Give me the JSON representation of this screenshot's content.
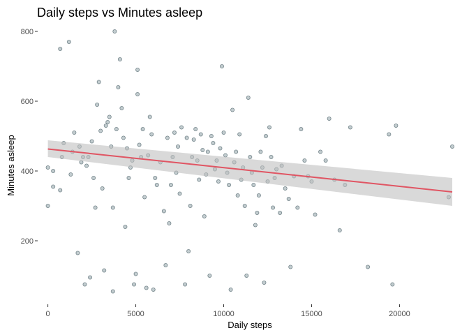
{
  "chart_data": {
    "type": "scatter",
    "title": "Daily steps vs Minutes asleep",
    "xlabel": "Daily steps",
    "ylabel": "Minutes asleep",
    "xlim": [
      -500,
      23000
    ],
    "ylim": [
      20,
      830
    ],
    "xticks": [
      0,
      5000,
      10000,
      15000,
      20000
    ],
    "yticks": [
      200,
      400,
      600,
      800
    ],
    "grid": false,
    "legend": "none",
    "colors": {
      "points": "#8fa3a8",
      "point_outline": "#4a5f66",
      "trend_line": "#e05563",
      "confidence_band": "#bfbfbf"
    },
    "trend_line": {
      "x": [
        0,
        23000
      ],
      "y": [
        463,
        340
      ]
    },
    "confidence_band": {
      "x": [
        0,
        23000
      ],
      "lower": [
        440,
        300
      ],
      "upper": [
        488,
        380
      ]
    },
    "points": [
      [
        0,
        300
      ],
      [
        0,
        410
      ],
      [
        300,
        355
      ],
      [
        300,
        400
      ],
      [
        700,
        750
      ],
      [
        700,
        345
      ],
      [
        800,
        440
      ],
      [
        900,
        480
      ],
      [
        1200,
        770
      ],
      [
        1300,
        390
      ],
      [
        1400,
        455
      ],
      [
        1500,
        510
      ],
      [
        1700,
        165
      ],
      [
        1800,
        470
      ],
      [
        1900,
        425
      ],
      [
        2000,
        440
      ],
      [
        2100,
        75
      ],
      [
        2200,
        415
      ],
      [
        2300,
        440
      ],
      [
        2400,
        95
      ],
      [
        2500,
        485
      ],
      [
        2600,
        380
      ],
      [
        2700,
        295
      ],
      [
        2800,
        590
      ],
      [
        2900,
        655
      ],
      [
        3000,
        515
      ],
      [
        3100,
        350
      ],
      [
        3200,
        115
      ],
      [
        3300,
        530
      ],
      [
        3400,
        540
      ],
      [
        3500,
        555
      ],
      [
        3600,
        470
      ],
      [
        3700,
        295
      ],
      [
        3700,
        55
      ],
      [
        3800,
        800
      ],
      [
        3900,
        520
      ],
      [
        4000,
        640
      ],
      [
        4100,
        720
      ],
      [
        4200,
        580
      ],
      [
        4300,
        495
      ],
      [
        4400,
        240
      ],
      [
        4500,
        465
      ],
      [
        4600,
        380
      ],
      [
        4700,
        410
      ],
      [
        4800,
        430
      ],
      [
        4900,
        75
      ],
      [
        5000,
        105
      ],
      [
        5100,
        690
      ],
      [
        5100,
        620
      ],
      [
        5200,
        475
      ],
      [
        5300,
        440
      ],
      [
        5400,
        520
      ],
      [
        5500,
        325
      ],
      [
        5600,
        65
      ],
      [
        5700,
        445
      ],
      [
        5800,
        555
      ],
      [
        5900,
        505
      ],
      [
        6000,
        60
      ],
      [
        6100,
        380
      ],
      [
        6200,
        360
      ],
      [
        6400,
        425
      ],
      [
        6600,
        285
      ],
      [
        6700,
        130
      ],
      [
        6800,
        495
      ],
      [
        6900,
        250
      ],
      [
        7000,
        360
      ],
      [
        7100,
        440
      ],
      [
        7200,
        510
      ],
      [
        7300,
        395
      ],
      [
        7400,
        470
      ],
      [
        7500,
        335
      ],
      [
        7600,
        525
      ],
      [
        7800,
        75
      ],
      [
        7900,
        495
      ],
      [
        8000,
        170
      ],
      [
        8100,
        300
      ],
      [
        8200,
        440
      ],
      [
        8300,
        490
      ],
      [
        8400,
        520
      ],
      [
        8500,
        430
      ],
      [
        8600,
        375
      ],
      [
        8700,
        505
      ],
      [
        8800,
        460
      ],
      [
        8900,
        270
      ],
      [
        9000,
        390
      ],
      [
        9100,
        455
      ],
      [
        9200,
        100
      ],
      [
        9300,
        500
      ],
      [
        9400,
        480
      ],
      [
        9500,
        405
      ],
      [
        9600,
        430
      ],
      [
        9700,
        370
      ],
      [
        9800,
        465
      ],
      [
        9900,
        700
      ],
      [
        10000,
        510
      ],
      [
        10100,
        445
      ],
      [
        10200,
        395
      ],
      [
        10300,
        360
      ],
      [
        10400,
        60
      ],
      [
        10500,
        575
      ],
      [
        10600,
        425
      ],
      [
        10700,
        455
      ],
      [
        10800,
        330
      ],
      [
        10900,
        505
      ],
      [
        11000,
        375
      ],
      [
        11100,
        410
      ],
      [
        11200,
        300
      ],
      [
        11300,
        100
      ],
      [
        11400,
        610
      ],
      [
        11500,
        440
      ],
      [
        11600,
        395
      ],
      [
        11700,
        360
      ],
      [
        11800,
        245
      ],
      [
        11900,
        280
      ],
      [
        12000,
        330
      ],
      [
        12100,
        455
      ],
      [
        12200,
        410
      ],
      [
        12300,
        80
      ],
      [
        12400,
        500
      ],
      [
        12500,
        370
      ],
      [
        12600,
        525
      ],
      [
        12700,
        440
      ],
      [
        12800,
        295
      ],
      [
        12900,
        380
      ],
      [
        13000,
        405
      ],
      [
        13200,
        280
      ],
      [
        13300,
        415
      ],
      [
        13500,
        350
      ],
      [
        13700,
        320
      ],
      [
        13800,
        125
      ],
      [
        14000,
        385
      ],
      [
        14200,
        295
      ],
      [
        14400,
        520
      ],
      [
        14600,
        430
      ],
      [
        14800,
        385
      ],
      [
        15000,
        370
      ],
      [
        15200,
        275
      ],
      [
        15500,
        455
      ],
      [
        15800,
        430
      ],
      [
        16000,
        550
      ],
      [
        16300,
        375
      ],
      [
        16600,
        230
      ],
      [
        16900,
        360
      ],
      [
        17200,
        525
      ],
      [
        18200,
        125
      ],
      [
        19600,
        75
      ],
      [
        19400,
        505
      ],
      [
        19800,
        530
      ],
      [
        22800,
        325
      ],
      [
        23000,
        470
      ]
    ]
  }
}
